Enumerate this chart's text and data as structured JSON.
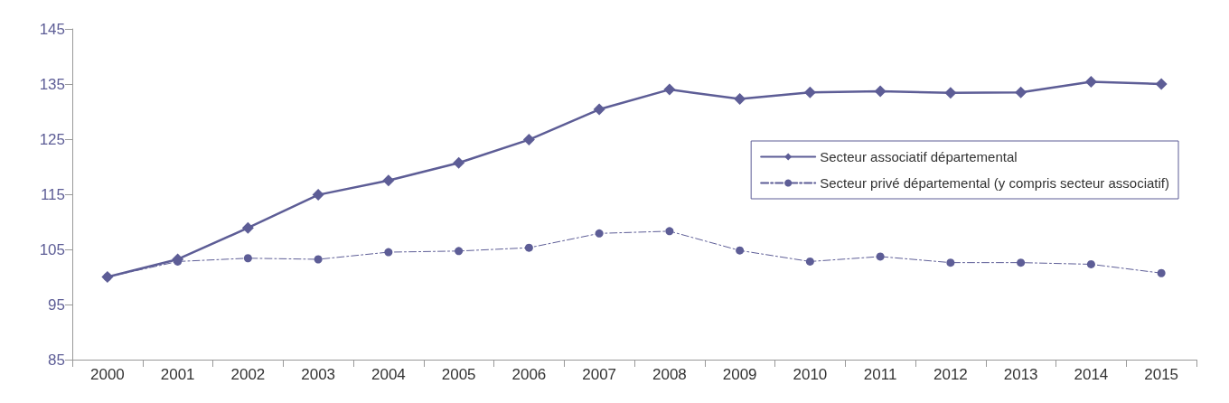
{
  "chart_data": {
    "type": "line",
    "categories": [
      "2000",
      "2001",
      "2002",
      "2003",
      "2004",
      "2005",
      "2006",
      "2007",
      "2008",
      "2009",
      "2010",
      "2011",
      "2012",
      "2013",
      "2014",
      "2015"
    ],
    "series": [
      {
        "name": "Secteur associatif départemental",
        "color": "#5d5d96",
        "marker": "diamond",
        "line_style": "solid",
        "values": [
          100,
          103.2,
          108.9,
          114.9,
          117.5,
          120.7,
          124.9,
          130.4,
          134.0,
          132.3,
          133.5,
          133.7,
          133.4,
          133.5,
          135.4,
          135.0
        ]
      },
      {
        "name": "Secteur privé départemental (y compris secteur associatif)",
        "color": "#5d5d96",
        "marker": "circle",
        "line_style": "dashed",
        "values": [
          100,
          102.8,
          103.4,
          103.2,
          104.5,
          104.7,
          105.3,
          107.9,
          108.3,
          104.8,
          102.8,
          103.7,
          102.6,
          102.6,
          102.3,
          100.7
        ]
      }
    ],
    "ylim": [
      85,
      145
    ],
    "yticks": [
      85,
      95,
      105,
      115,
      125,
      135,
      145
    ],
    "grid": false,
    "legend": "top right"
  }
}
